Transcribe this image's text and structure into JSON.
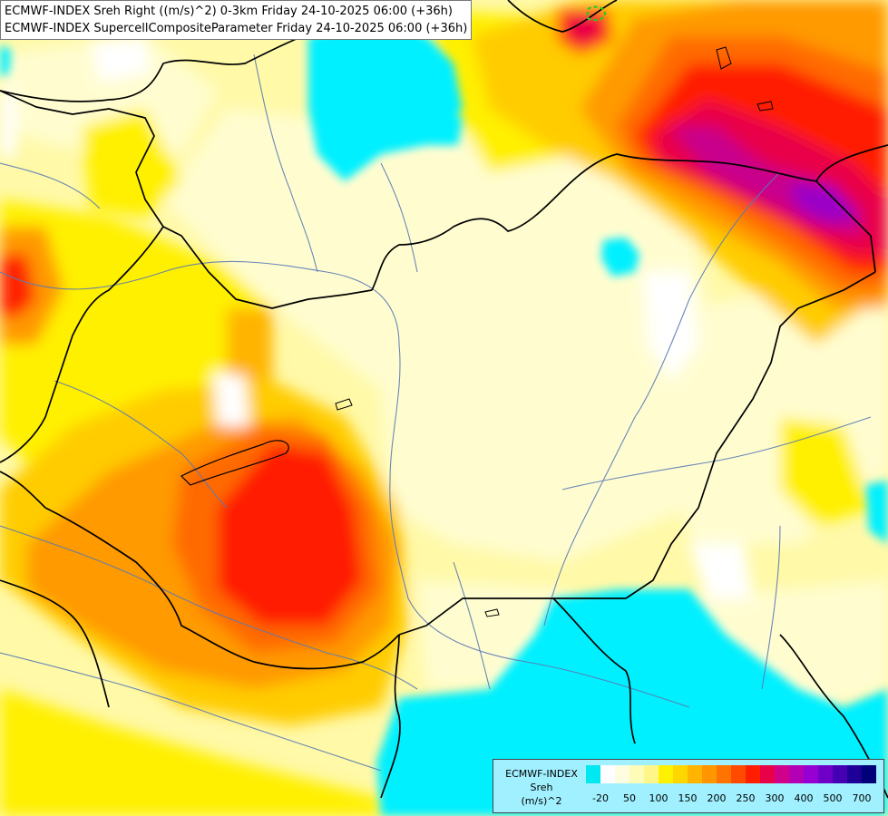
{
  "header": {
    "line1": "ECMWF-INDEX Sreh Right ((m/s)^2) 0-3km Friday 24-10-2025 06:00 (+36h)",
    "line2": "ECMWF-INDEX SupercellCompositeParameter Friday 24-10-2025 06:00 (+36h)"
  },
  "legend": {
    "title1": "ECMWF-INDEX",
    "title2": "Sreh",
    "title3": "(m/s)^2",
    "colors": [
      "#00e8f0",
      "#ffffff",
      "#fffde0",
      "#fffbb8",
      "#fff68a",
      "#fff200",
      "#ffd700",
      "#ffb400",
      "#ff9600",
      "#ff7400",
      "#ff4a00",
      "#ff1e00",
      "#e8004a",
      "#d0008a",
      "#b400b4",
      "#9600d2",
      "#6e00c8",
      "#4600b4",
      "#1e0096",
      "#000078"
    ],
    "ticks": [
      {
        "label": "-20",
        "at": 1
      },
      {
        "label": "50",
        "at": 3
      },
      {
        "label": "100",
        "at": 5
      },
      {
        "label": "150",
        "at": 7
      },
      {
        "label": "200",
        "at": 9
      },
      {
        "label": "250",
        "at": 11
      },
      {
        "label": "300",
        "at": 13
      },
      {
        "label": "400",
        "at": 15
      },
      {
        "label": "500",
        "at": 17
      },
      {
        "label": "700",
        "at": 19
      }
    ]
  },
  "map": {
    "colors": {
      "cyan": "#00f0ff",
      "white": "#ffffff",
      "cream": "#fffdd0",
      "pale": "#fffaa0",
      "yellow": "#fff000",
      "gold": "#ffcc00",
      "orange": "#ff9a00",
      "dark-orange": "#ff6a00",
      "red": "#ff1a00",
      "crimson": "#e8004a",
      "magenta": "#c8008c",
      "purple": "#9a00c8",
      "green-contour": "#22cc22",
      "border-line": "#000000",
      "river-line": "#5a7ab4"
    }
  }
}
